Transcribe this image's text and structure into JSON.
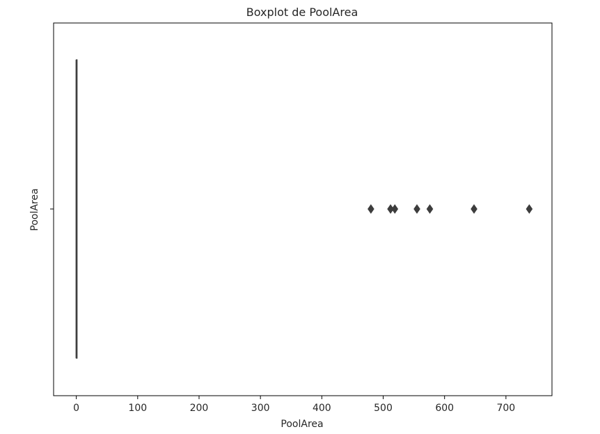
{
  "chart_data": {
    "type": "boxplot",
    "title": "Boxplot de PoolArea",
    "xlabel": "PoolArea",
    "ylabel": "PoolArea",
    "xlim": [
      -37,
      775
    ],
    "x_ticks": [
      0,
      100,
      200,
      300,
      400,
      500,
      600,
      700
    ],
    "y_ticks": [
      ""
    ],
    "grid": false,
    "orientation": "horizontal",
    "box": {
      "min": 0,
      "q1": 0,
      "median": 0,
      "q3": 0,
      "max": 0
    },
    "outliers": [
      480,
      512,
      519,
      555,
      576,
      648,
      738
    ],
    "colors": {
      "box_line": "#3f3f3f",
      "outlier": "#3d3d3d",
      "axes": "#000000",
      "text": "#262626"
    }
  }
}
